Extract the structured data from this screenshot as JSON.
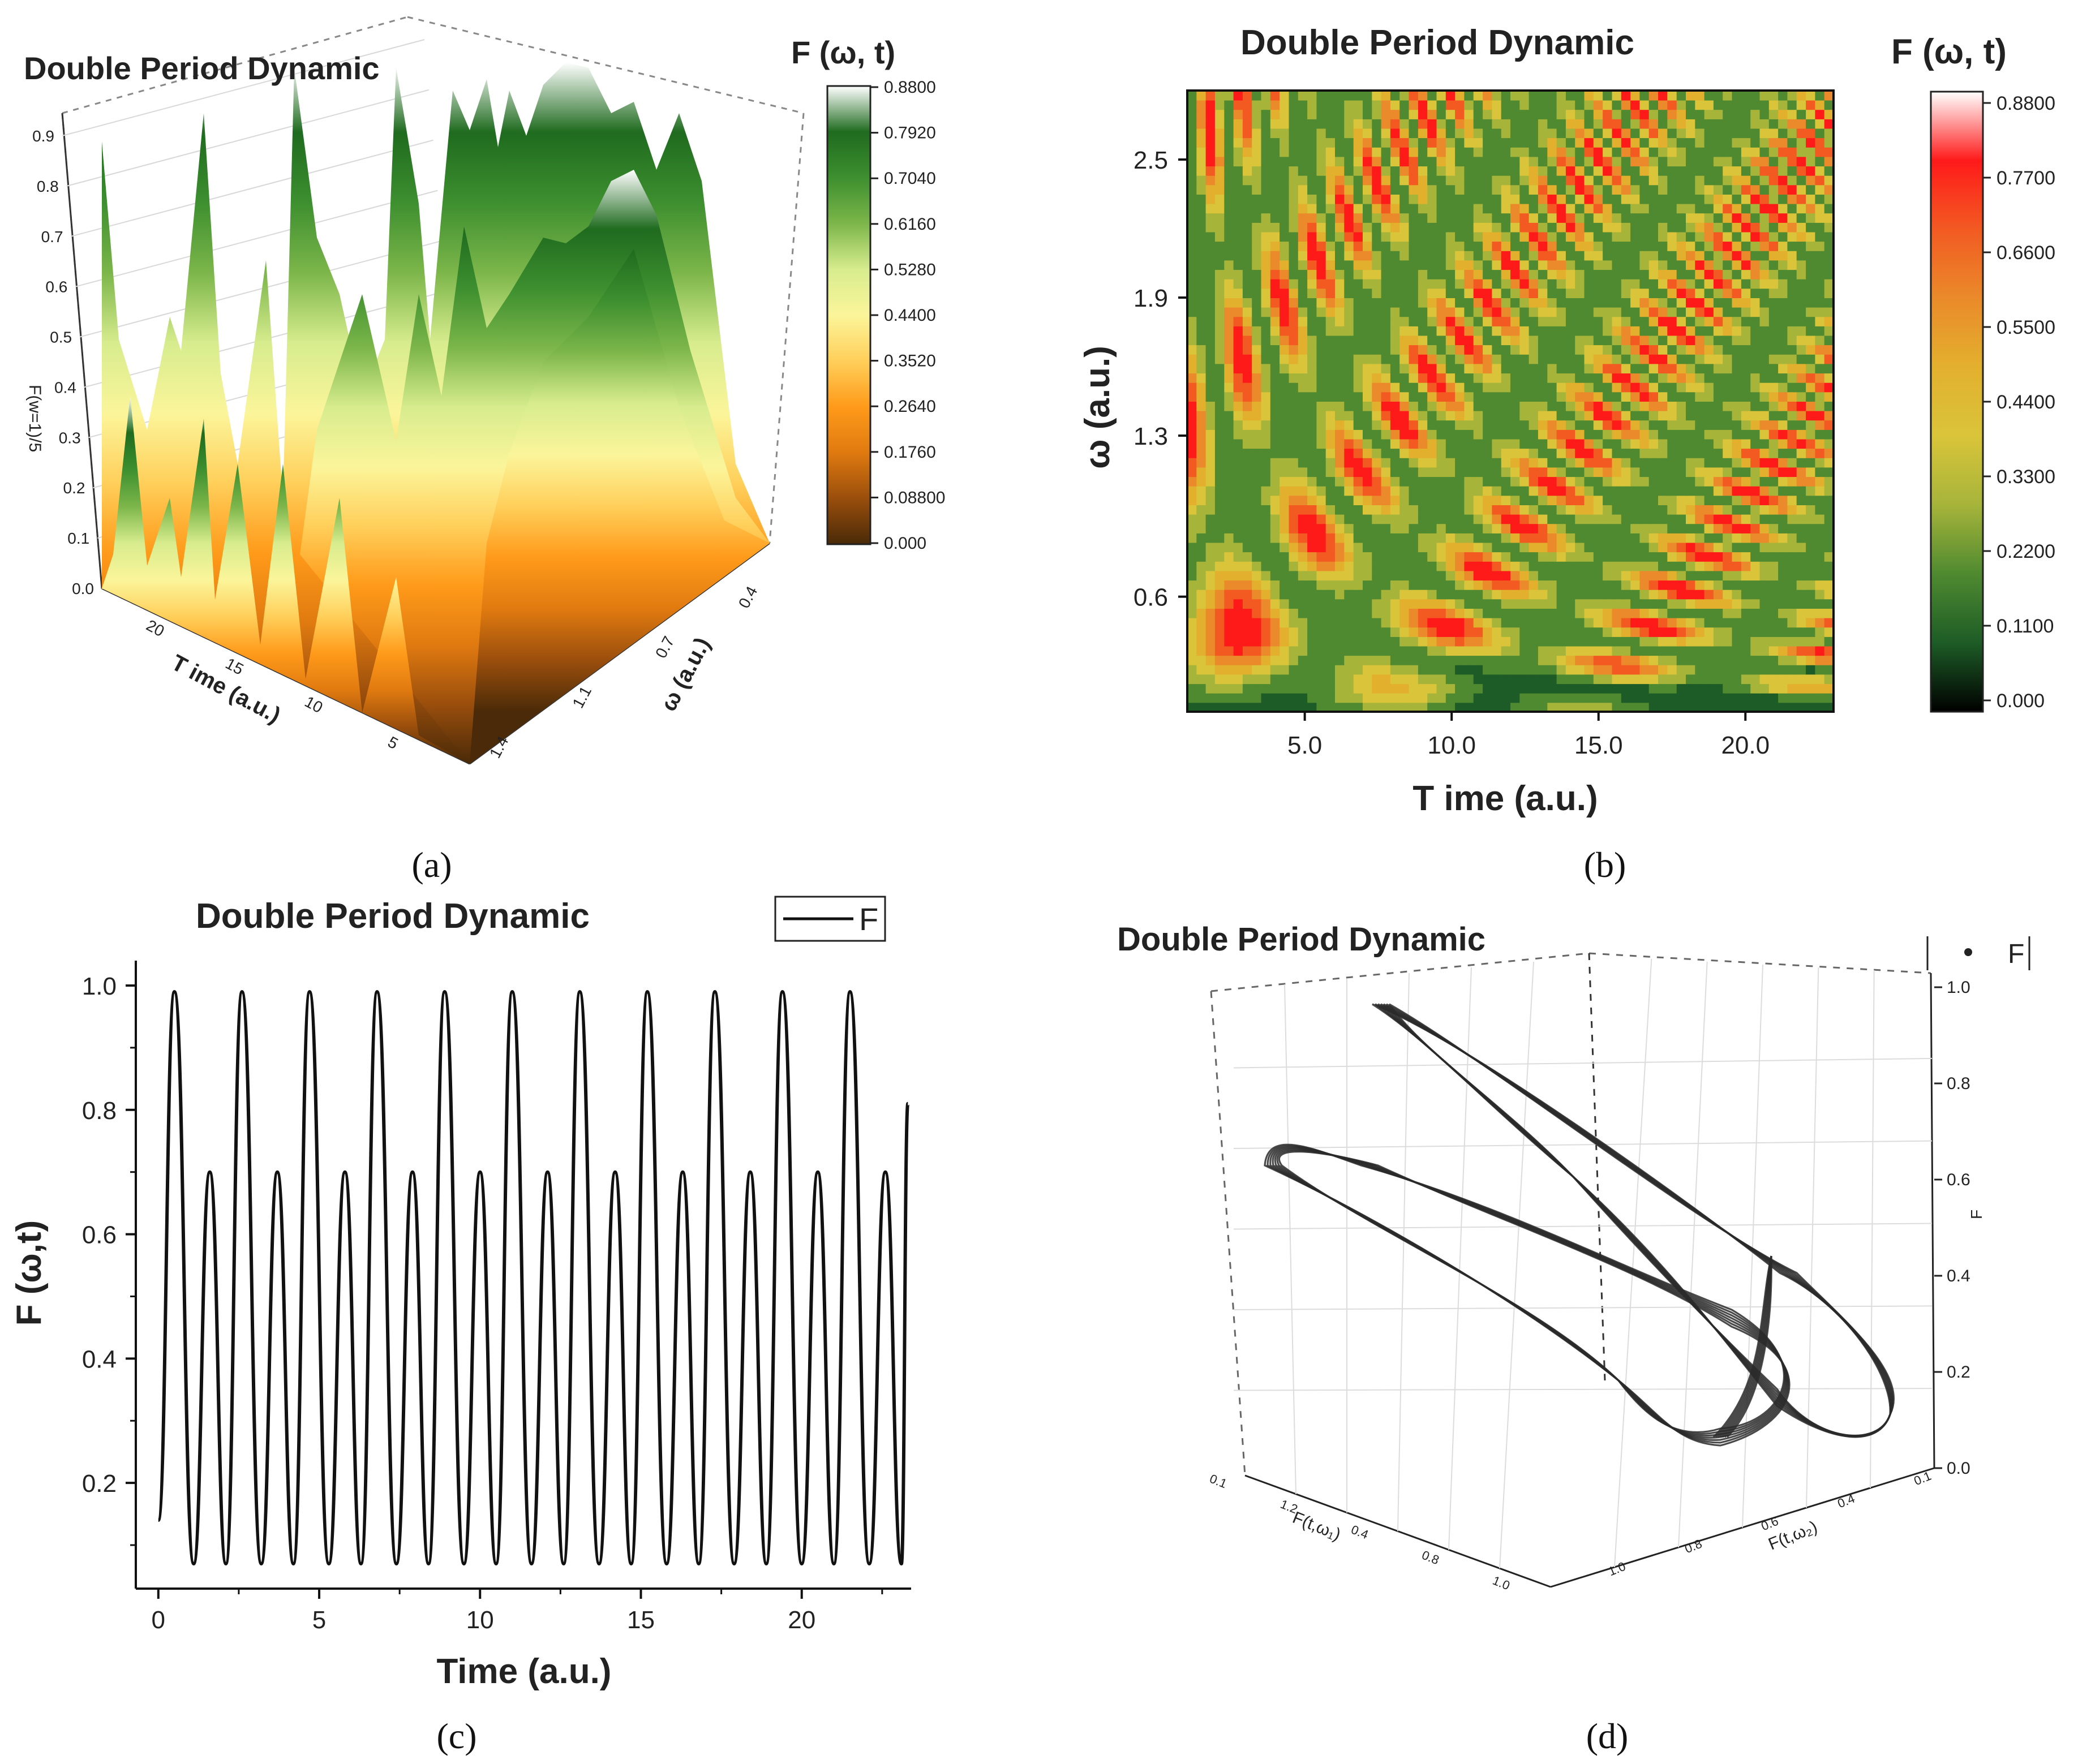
{
  "chart_data": [
    {
      "panel": "a",
      "type": "surface3d",
      "title": "Double Period Dynamic",
      "caption": "(a)",
      "zlabel": "F(w=1)/5",
      "xlabel": "T ime (a.u.)",
      "ylabel": "ω (a.u.)",
      "z_ticks": [
        "0.0",
        "0.1",
        "0.2",
        "0.3",
        "0.4",
        "0.5",
        "0.6",
        "0.7",
        "0.8",
        "0.9"
      ],
      "t_ticks": [
        "20",
        "15",
        "10",
        "5"
      ],
      "w_ticks": [
        "0.4",
        "0.7",
        "1.1",
        "1.4"
      ],
      "colorbar": {
        "title": "F (ω, t)",
        "ticks": [
          "0.8800",
          "0.7920",
          "0.7040",
          "0.6160",
          "0.5280",
          "0.4400",
          "0.3520",
          "0.2640",
          "0.1760",
          "0.08800",
          "0.000"
        ],
        "colors": [
          "#ffffff",
          "#1f6b1f",
          "#3d8f2f",
          "#7cb64a",
          "#d7ec8e",
          "#fbf59a",
          "#ffcf5a",
          "#ff9a1a",
          "#e07a10",
          "#9a4e0c",
          "#4a2a08"
        ]
      }
    },
    {
      "panel": "b",
      "type": "heatmap",
      "title": "Double Period Dynamic",
      "caption": "(b)",
      "xlabel": "T ime (a.u.)",
      "ylabel": "ω (a.u.)",
      "xlim": [
        1.0,
        23.0
      ],
      "ylim": [
        0.1,
        2.8
      ],
      "x_ticks": [
        5.0,
        10.0,
        15.0,
        20.0
      ],
      "x_tick_labels": [
        "5.0",
        "10.0",
        "15.0",
        "20.0"
      ],
      "y_ticks": [
        0.6,
        1.3,
        1.9,
        2.5
      ],
      "y_tick_labels": [
        "0.6",
        "1.3",
        "1.9",
        "2.5"
      ],
      "colorbar": {
        "title": "F (ω, t)",
        "ticks": [
          "0.8800",
          "0.7700",
          "0.6600",
          "0.5500",
          "0.4400",
          "0.3300",
          "0.2200",
          "0.1100",
          "0.000"
        ],
        "colors": [
          "#ffffff",
          "#ff1a1a",
          "#f25a22",
          "#ea8a2a",
          "#e3b02e",
          "#d9c43a",
          "#a6b43a",
          "#4f8a30",
          "#1d5c26",
          "#000000"
        ]
      }
    },
    {
      "panel": "c",
      "type": "line",
      "title": "Double Period Dynamic",
      "caption": "(c)",
      "xlabel": "Time (a.u.)",
      "ylabel": "F (ω,t)",
      "legend": "F",
      "xlim": [
        -0.7,
        23.4
      ],
      "ylim": [
        0.03,
        1.04
      ],
      "x_ticks": [
        0,
        5,
        10,
        15,
        20
      ],
      "x_tick_labels": [
        "0",
        "5",
        "10",
        "15",
        "20"
      ],
      "y_ticks": [
        0.2,
        0.4,
        0.6,
        0.8,
        1.0
      ],
      "y_tick_labels": [
        "0.2",
        "0.4",
        "0.6",
        "0.8",
        "1.0"
      ],
      "series": [
        {
          "name": "F",
          "x": [
            0.0,
            0.5,
            1.1,
            1.6,
            2.1,
            2.6,
            3.2,
            3.7,
            4.2,
            4.7,
            5.3,
            5.8,
            6.3,
            6.8,
            7.4,
            7.9,
            8.4,
            8.9,
            9.5,
            10.0,
            10.5,
            11.0,
            11.6,
            12.1,
            12.6,
            13.1,
            13.7,
            14.2,
            14.7,
            15.2,
            15.8,
            16.3,
            16.8,
            17.3,
            17.9,
            18.4,
            18.9,
            19.4,
            20.0,
            20.5,
            21.0,
            21.5,
            22.1,
            22.6,
            23.1,
            23.3
          ],
          "y": [
            0.14,
            0.99,
            0.07,
            0.7,
            0.07,
            0.99,
            0.07,
            0.7,
            0.07,
            0.99,
            0.07,
            0.7,
            0.07,
            0.99,
            0.07,
            0.7,
            0.07,
            0.99,
            0.07,
            0.7,
            0.07,
            0.99,
            0.07,
            0.7,
            0.07,
            0.99,
            0.07,
            0.7,
            0.07,
            0.99,
            0.07,
            0.7,
            0.07,
            0.99,
            0.07,
            0.7,
            0.07,
            0.99,
            0.07,
            0.7,
            0.07,
            0.99,
            0.07,
            0.7,
            0.07,
            0.81
          ]
        }
      ]
    },
    {
      "panel": "d",
      "type": "scatter3d",
      "title": "Double Period Dynamic",
      "caption": "(d)",
      "legend": "F",
      "zlabel": "F",
      "xlabel": "F(t,ω₁)",
      "ylabel": "F(t,ω₂)",
      "z_ticks": [
        "0.0",
        "0.2",
        "0.4",
        "0.6",
        "0.8",
        "1.0"
      ],
      "x_ticks": [
        "0.1",
        "1.2",
        "0.4",
        "0.8",
        "1.0"
      ],
      "y_ticks": [
        "0.1",
        "0.4",
        "0.6",
        "0.8",
        "1.0"
      ]
    }
  ]
}
